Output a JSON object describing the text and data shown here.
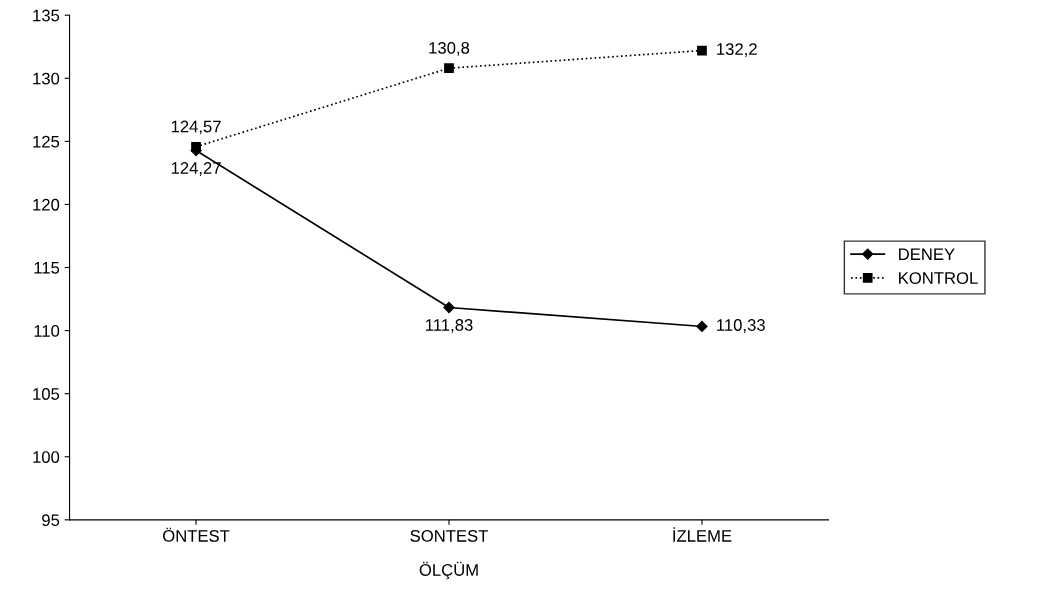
{
  "chart_data": {
    "type": "line",
    "xlabel": "ÖLÇÜM",
    "categories": [
      "ÖNTEST",
      "SONTEST",
      "İZLEME"
    ],
    "series": [
      {
        "name": "DENEY",
        "color": "#000000",
        "marker": "diamond",
        "line_style": "solid",
        "values": [
          124.27,
          111.83,
          110.33
        ],
        "value_labels": [
          "124,27",
          "111,83",
          "110,33"
        ]
      },
      {
        "name": "KONTROL",
        "color": "#000000",
        "marker": "square",
        "line_style": "dotted",
        "values": [
          124.57,
          130.8,
          132.2
        ],
        "value_labels": [
          "124,57",
          "130,8",
          "132,2"
        ]
      }
    ],
    "ylim": [
      95,
      135
    ],
    "yticks": [
      95,
      100,
      105,
      110,
      115,
      120,
      125,
      130,
      135
    ],
    "grid": false,
    "legend": "right"
  }
}
